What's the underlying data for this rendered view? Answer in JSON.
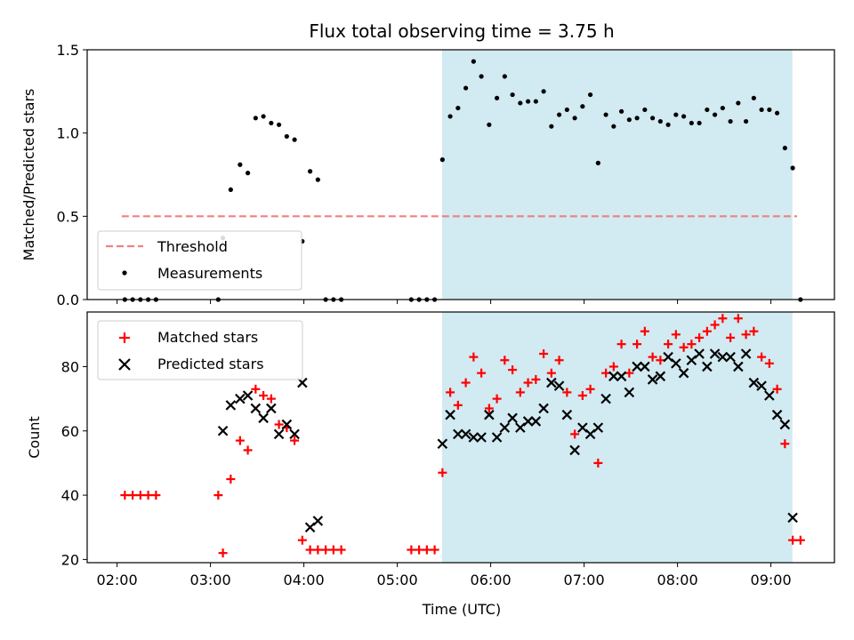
{
  "chart_data": {
    "title": "Flux total observing time = 3.75 h",
    "xlabel": "Time (UTC)",
    "x_tick_labels": [
      "02:00",
      "03:00",
      "04:00",
      "05:00",
      "06:00",
      "07:00",
      "08:00",
      "09:00"
    ],
    "x_tick_hours": [
      2,
      3,
      4,
      5,
      6,
      7,
      8,
      9
    ],
    "xlim_hours": [
      1.68,
      9.68
    ],
    "highlight_span_hours": [
      5.48,
      9.23
    ],
    "colors": {
      "threshold": "#f08080",
      "measurements": "#000000",
      "matched": "#ff0000",
      "predicted": "#000000",
      "highlight": "#add8e6"
    },
    "charts": [
      {
        "type": "scatter",
        "ylabel": "Matched/Predicted stars",
        "ylim": [
          0,
          1.5
        ],
        "y_ticks": [
          0.0,
          0.5,
          1.0,
          1.5
        ],
        "y_tick_labels": [
          "0.0",
          "0.5",
          "1.0",
          "1.5"
        ],
        "threshold": {
          "name": "Threshold",
          "value": 0.5,
          "x_range_hours": [
            2.05,
            9.28
          ]
        },
        "series": [
          {
            "name": "Measurements",
            "points": [
              [
                "02:05",
                0.0
              ],
              [
                "02:10",
                0.0
              ],
              [
                "02:15",
                0.0
              ],
              [
                "02:20",
                0.0
              ],
              [
                "02:25",
                0.0
              ],
              [
                "03:05",
                0.0
              ],
              [
                "03:08",
                0.37
              ],
              [
                "03:13",
                0.66
              ],
              [
                "03:19",
                0.81
              ],
              [
                "03:24",
                0.76
              ],
              [
                "03:29",
                1.09
              ],
              [
                "03:34",
                1.1
              ],
              [
                "03:39",
                1.06
              ],
              [
                "03:44",
                1.05
              ],
              [
                "03:49",
                0.98
              ],
              [
                "03:54",
                0.96
              ],
              [
                "03:59",
                0.35
              ],
              [
                "04:04",
                0.77
              ],
              [
                "04:09",
                0.72
              ],
              [
                "04:14",
                0.0
              ],
              [
                "04:19",
                0.0
              ],
              [
                "04:24",
                0.0
              ],
              [
                "05:09",
                0.0
              ],
              [
                "05:14",
                0.0
              ],
              [
                "05:19",
                0.0
              ],
              [
                "05:24",
                0.0
              ],
              [
                "05:29",
                0.84
              ],
              [
                "05:34",
                1.1
              ],
              [
                "05:39",
                1.15
              ],
              [
                "05:44",
                1.27
              ],
              [
                "05:49",
                1.43
              ],
              [
                "05:54",
                1.34
              ],
              [
                "05:59",
                1.05
              ],
              [
                "06:04",
                1.21
              ],
              [
                "06:09",
                1.34
              ],
              [
                "06:14",
                1.23
              ],
              [
                "06:19",
                1.18
              ],
              [
                "06:24",
                1.19
              ],
              [
                "06:29",
                1.19
              ],
              [
                "06:34",
                1.25
              ],
              [
                "06:39",
                1.04
              ],
              [
                "06:44",
                1.11
              ],
              [
                "06:49",
                1.14
              ],
              [
                "06:54",
                1.09
              ],
              [
                "06:59",
                1.16
              ],
              [
                "07:04",
                1.23
              ],
              [
                "07:09",
                0.82
              ],
              [
                "07:14",
                1.11
              ],
              [
                "07:19",
                1.04
              ],
              [
                "07:24",
                1.13
              ],
              [
                "07:29",
                1.08
              ],
              [
                "07:34",
                1.09
              ],
              [
                "07:39",
                1.14
              ],
              [
                "07:44",
                1.09
              ],
              [
                "07:49",
                1.07
              ],
              [
                "07:54",
                1.05
              ],
              [
                "07:59",
                1.11
              ],
              [
                "08:04",
                1.1
              ],
              [
                "08:09",
                1.06
              ],
              [
                "08:14",
                1.06
              ],
              [
                "08:19",
                1.14
              ],
              [
                "08:24",
                1.11
              ],
              [
                "08:29",
                1.15
              ],
              [
                "08:34",
                1.07
              ],
              [
                "08:39",
                1.18
              ],
              [
                "08:44",
                1.07
              ],
              [
                "08:49",
                1.21
              ],
              [
                "08:54",
                1.14
              ],
              [
                "08:59",
                1.14
              ],
              [
                "09:04",
                1.12
              ],
              [
                "09:09",
                0.91
              ],
              [
                "09:14",
                0.79
              ],
              [
                "09:19",
                0.0
              ]
            ]
          }
        ],
        "legend": {
          "placement": "lower-left",
          "entries": [
            "Threshold",
            "Measurements"
          ]
        }
      },
      {
        "type": "scatter",
        "ylabel": "Count",
        "ylim": [
          19,
          97
        ],
        "y_ticks": [
          20,
          40,
          60,
          80
        ],
        "y_tick_labels": [
          "20",
          "40",
          "60",
          "80"
        ],
        "series": [
          {
            "name": "Matched stars",
            "points": [
              [
                "02:05",
                40
              ],
              [
                "02:10",
                40
              ],
              [
                "02:15",
                40
              ],
              [
                "02:20",
                40
              ],
              [
                "02:25",
                40
              ],
              [
                "03:05",
                40
              ],
              [
                "03:08",
                22
              ],
              [
                "03:13",
                45
              ],
              [
                "03:19",
                57
              ],
              [
                "03:24",
                54
              ],
              [
                "03:29",
                73
              ],
              [
                "03:34",
                71
              ],
              [
                "03:39",
                70
              ],
              [
                "03:44",
                62
              ],
              [
                "03:49",
                61
              ],
              [
                "03:54",
                57
              ],
              [
                "03:59",
                26
              ],
              [
                "04:04",
                23
              ],
              [
                "04:09",
                23
              ],
              [
                "04:14",
                23
              ],
              [
                "04:19",
                23
              ],
              [
                "04:24",
                23
              ],
              [
                "05:09",
                23
              ],
              [
                "05:14",
                23
              ],
              [
                "05:19",
                23
              ],
              [
                "05:24",
                23
              ],
              [
                "05:29",
                47
              ],
              [
                "05:34",
                72
              ],
              [
                "05:39",
                68
              ],
              [
                "05:44",
                75
              ],
              [
                "05:49",
                83
              ],
              [
                "05:54",
                78
              ],
              [
                "05:59",
                67
              ],
              [
                "06:04",
                70
              ],
              [
                "06:09",
                82
              ],
              [
                "06:14",
                79
              ],
              [
                "06:19",
                72
              ],
              [
                "06:24",
                75
              ],
              [
                "06:29",
                76
              ],
              [
                "06:34",
                84
              ],
              [
                "06:39",
                78
              ],
              [
                "06:44",
                82
              ],
              [
                "06:49",
                72
              ],
              [
                "06:54",
                59
              ],
              [
                "06:59",
                71
              ],
              [
                "07:04",
                73
              ],
              [
                "07:09",
                50
              ],
              [
                "07:14",
                78
              ],
              [
                "07:19",
                80
              ],
              [
                "07:24",
                87
              ],
              [
                "07:29",
                78
              ],
              [
                "07:34",
                87
              ],
              [
                "07:39",
                91
              ],
              [
                "07:44",
                83
              ],
              [
                "07:49",
                82
              ],
              [
                "07:54",
                87
              ],
              [
                "07:59",
                90
              ],
              [
                "08:04",
                86
              ],
              [
                "08:09",
                87
              ],
              [
                "08:14",
                89
              ],
              [
                "08:19",
                91
              ],
              [
                "08:24",
                93
              ],
              [
                "08:29",
                95
              ],
              [
                "08:34",
                89
              ],
              [
                "08:39",
                95
              ],
              [
                "08:44",
                90
              ],
              [
                "08:49",
                91
              ],
              [
                "08:54",
                83
              ],
              [
                "08:59",
                81
              ],
              [
                "09:04",
                73
              ],
              [
                "09:09",
                56
              ],
              [
                "09:14",
                26
              ],
              [
                "09:19",
                26
              ]
            ]
          },
          {
            "name": "Predicted stars",
            "points": [
              [
                "03:08",
                60
              ],
              [
                "03:13",
                68
              ],
              [
                "03:19",
                70
              ],
              [
                "03:24",
                71
              ],
              [
                "03:29",
                67
              ],
              [
                "03:34",
                64
              ],
              [
                "03:39",
                67
              ],
              [
                "03:44",
                59
              ],
              [
                "03:49",
                62
              ],
              [
                "03:54",
                59
              ],
              [
                "03:59",
                75
              ],
              [
                "04:04",
                30
              ],
              [
                "04:09",
                32
              ],
              [
                "05:29",
                56
              ],
              [
                "05:34",
                65
              ],
              [
                "05:39",
                59
              ],
              [
                "05:44",
                59
              ],
              [
                "05:49",
                58
              ],
              [
                "05:54",
                58
              ],
              [
                "05:59",
                65
              ],
              [
                "06:04",
                58
              ],
              [
                "06:09",
                61
              ],
              [
                "06:14",
                64
              ],
              [
                "06:19",
                61
              ],
              [
                "06:24",
                63
              ],
              [
                "06:29",
                63
              ],
              [
                "06:34",
                67
              ],
              [
                "06:39",
                75
              ],
              [
                "06:44",
                74
              ],
              [
                "06:49",
                65
              ],
              [
                "06:54",
                54
              ],
              [
                "06:59",
                61
              ],
              [
                "07:04",
                59
              ],
              [
                "07:09",
                61
              ],
              [
                "07:14",
                70
              ],
              [
                "07:19",
                77
              ],
              [
                "07:24",
                77
              ],
              [
                "07:29",
                72
              ],
              [
                "07:34",
                80
              ],
              [
                "07:39",
                80
              ],
              [
                "07:44",
                76
              ],
              [
                "07:49",
                77
              ],
              [
                "07:54",
                83
              ],
              [
                "07:59",
                81
              ],
              [
                "08:04",
                78
              ],
              [
                "08:09",
                82
              ],
              [
                "08:14",
                84
              ],
              [
                "08:19",
                80
              ],
              [
                "08:24",
                84
              ],
              [
                "08:29",
                83
              ],
              [
                "08:34",
                83
              ],
              [
                "08:39",
                80
              ],
              [
                "08:44",
                84
              ],
              [
                "08:49",
                75
              ],
              [
                "08:54",
                74
              ],
              [
                "08:59",
                71
              ],
              [
                "09:04",
                65
              ],
              [
                "09:09",
                62
              ],
              [
                "09:14",
                33
              ]
            ]
          }
        ],
        "legend": {
          "placement": "upper-left",
          "entries": [
            "Matched stars",
            "Predicted stars"
          ]
        }
      }
    ]
  }
}
